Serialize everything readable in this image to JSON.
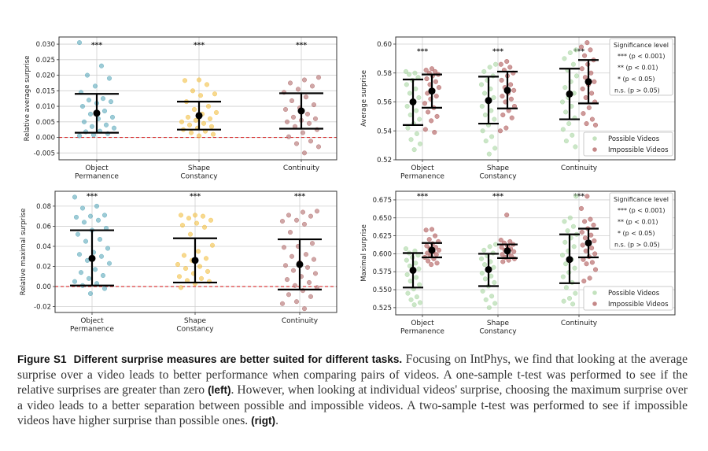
{
  "caption": {
    "label": "Figure S1",
    "title": "Different surprise measures are better suited for different tasks.",
    "text1": "Focusing on IntPhys, we find that looking at the average surprise over a video leads to better performance when comparing pairs of videos. A one-sample t-test was performed to see if the relative surprises are greater than zero",
    "left_ref": "(left)",
    "text2": ". However, when looking at individual videos' surprise, choosing the maximum surprise over a video leads to a better separation between possible and impossible videos. A two-sample t-test was performed to see if impossible videos have higher surprise than possible ones.",
    "right_ref": "(rigt)",
    "end": "."
  },
  "colors": {
    "object": "#5ba9ba",
    "shape": "#f2bf45",
    "continuity": "#b06c6c",
    "possible": "#a9d6a2",
    "impossible": "#ad5656",
    "mean": "#000000",
    "zero_line": "#d62728"
  },
  "chart_data": [
    {
      "type": "scatter",
      "ylabel": "Relative average surprise",
      "ylim": [
        -0.0072,
        0.0323
      ],
      "yticks": [
        -0.005,
        0.0,
        0.005,
        0.01,
        0.015,
        0.02,
        0.025,
        0.03
      ],
      "ytick_labels": [
        "-0.005",
        "0.000",
        "0.005",
        "0.010",
        "0.015",
        "0.020",
        "0.025",
        "0.030"
      ],
      "categories": [
        "Object|Permanence",
        "Shape|Constancy",
        "Continuity"
      ],
      "significance": [
        "***",
        "***",
        "***"
      ],
      "zero_line": true,
      "groups": [
        {
          "cat": 0,
          "color": "object",
          "mean": 0.0078,
          "ci": [
            0.0015,
            0.014
          ],
          "points": [
            0.0305,
            0.023,
            0.02,
            0.019,
            0.0165,
            0.0145,
            0.0125,
            0.012,
            0.0115,
            0.011,
            0.01,
            0.0085,
            0.0075,
            0.0065,
            0.006,
            0.005,
            0.004,
            0.0035,
            0.003,
            0.002,
            0.0018,
            0.0012,
            0.0008,
            0.0005
          ]
        },
        {
          "cat": 1,
          "color": "shape",
          "mean": 0.007,
          "ci": [
            0.0025,
            0.0115
          ],
          "points": [
            0.0185,
            0.0183,
            0.017,
            0.015,
            0.014,
            0.0135,
            0.0115,
            0.01,
            0.009,
            0.008,
            0.0075,
            0.0065,
            0.006,
            0.0055,
            0.005,
            0.0045,
            0.004,
            0.0035,
            0.003,
            0.0025,
            0.002,
            0.0015,
            0.001,
            0.0005
          ]
        },
        {
          "cat": 2,
          "color": "continuity",
          "mean": 0.0085,
          "ci": [
            0.0028,
            0.0142
          ],
          "points": [
            0.0193,
            0.0185,
            0.0175,
            0.0165,
            0.0155,
            0.0145,
            0.013,
            0.0118,
            0.0105,
            0.0095,
            0.009,
            0.0075,
            0.0065,
            0.006,
            0.0055,
            0.005,
            0.0045,
            0.0035,
            0.0025,
            0.0015,
            0.0002,
            -0.0012,
            -0.002,
            -0.003,
            -0.005
          ]
        }
      ]
    },
    {
      "type": "scatter",
      "ylabel": "Average surprise",
      "ylim": [
        0.52,
        0.6049
      ],
      "yticks": [
        0.52,
        0.54,
        0.56,
        0.58,
        0.6
      ],
      "ytick_labels": [
        "0.52",
        "0.54",
        "0.56",
        "0.58",
        "0.60"
      ],
      "categories": [
        "Object|Permanence",
        "Shape|Constancy",
        "Continuity"
      ],
      "significance": [
        "***",
        "***",
        "***"
      ],
      "zero_line": false,
      "legend_sig": {
        "title": "Significance level",
        "items": [
          "*** (p < 0.001)",
          "** (p < 0.01)",
          "* (p < 0.05)",
          "n.s. (p > 0.05)"
        ]
      },
      "legend": [
        {
          "label": "Possible Videos",
          "color": "possible"
        },
        {
          "label": "Impossible Videos",
          "color": "impossible"
        }
      ],
      "groups": [
        {
          "cat": 0,
          "side": -1,
          "color": "possible",
          "mean": 0.56,
          "ci": [
            0.544,
            0.5755
          ],
          "points": [
            0.581,
            0.58,
            0.579,
            0.577,
            0.575,
            0.572,
            0.569,
            0.566,
            0.563,
            0.56,
            0.557,
            0.554,
            0.551,
            0.548,
            0.545,
            0.542,
            0.538,
            0.534,
            0.531,
            0.527
          ]
        },
        {
          "cat": 0,
          "side": 1,
          "color": "impossible",
          "mean": 0.5675,
          "ci": [
            0.556,
            0.579
          ],
          "points": [
            0.583,
            0.582,
            0.581,
            0.58,
            0.579,
            0.578,
            0.576,
            0.574,
            0.572,
            0.57,
            0.568,
            0.566,
            0.564,
            0.562,
            0.559,
            0.556,
            0.553,
            0.55,
            0.547,
            0.541,
            0.539
          ]
        },
        {
          "cat": 1,
          "side": -1,
          "color": "possible",
          "mean": 0.561,
          "ci": [
            0.545,
            0.5775
          ],
          "points": [
            0.586,
            0.584,
            0.581,
            0.578,
            0.575,
            0.572,
            0.569,
            0.566,
            0.563,
            0.56,
            0.557,
            0.554,
            0.551,
            0.548,
            0.544,
            0.54,
            0.536,
            0.533,
            0.528,
            0.524
          ]
        },
        {
          "cat": 1,
          "side": 1,
          "color": "impossible",
          "mean": 0.568,
          "ci": [
            0.5555,
            0.581
          ],
          "points": [
            0.588,
            0.586,
            0.584,
            0.582,
            0.58,
            0.578,
            0.575,
            0.572,
            0.57,
            0.568,
            0.566,
            0.564,
            0.562,
            0.56,
            0.557,
            0.554,
            0.551,
            0.549,
            0.542,
            0.54
          ]
        },
        {
          "cat": 2,
          "side": -1,
          "color": "possible",
          "mean": 0.5655,
          "ci": [
            0.548,
            0.583
          ],
          "points": [
            0.596,
            0.594,
            0.59,
            0.586,
            0.582,
            0.578,
            0.574,
            0.57,
            0.566,
            0.563,
            0.56,
            0.557,
            0.553,
            0.549,
            0.545,
            0.541,
            0.537,
            0.533,
            0.529
          ]
        },
        {
          "cat": 2,
          "side": 1,
          "color": "impossible",
          "mean": 0.574,
          "ci": [
            0.559,
            0.589
          ],
          "points": [
            0.601,
            0.598,
            0.596,
            0.592,
            0.589,
            0.586,
            0.583,
            0.58,
            0.577,
            0.574,
            0.572,
            0.569,
            0.566,
            0.563,
            0.56,
            0.556,
            0.552,
            0.548,
            0.545,
            0.544
          ]
        }
      ]
    },
    {
      "type": "scatter",
      "ylabel": "Relative maximal surprise",
      "ylim": [
        -0.0258,
        0.0948
      ],
      "yticks": [
        -0.02,
        0.0,
        0.02,
        0.04,
        0.06,
        0.08
      ],
      "ytick_labels": [
        "-0.02",
        "0.00",
        "0.02",
        "0.04",
        "0.06",
        "0.08"
      ],
      "categories": [
        "Object|Permanence",
        "Shape|Constancy",
        "Continuity"
      ],
      "significance": [
        "***",
        "***",
        "***"
      ],
      "zero_line": true,
      "groups": [
        {
          "cat": 0,
          "color": "object",
          "mean": 0.028,
          "ci": [
            0.001,
            0.056
          ],
          "points": [
            0.089,
            0.08,
            0.078,
            0.071,
            0.07,
            0.069,
            0.066,
            0.064,
            0.058,
            0.056,
            0.052,
            0.047,
            0.045,
            0.038,
            0.034,
            0.032,
            0.03,
            0.026,
            0.023,
            0.017,
            0.014,
            0.011,
            0.008,
            0.005,
            0.003,
            0.001,
            -0.002,
            -0.007
          ]
        },
        {
          "cat": 1,
          "color": "shape",
          "mean": 0.026,
          "ci": [
            0.004,
            0.048
          ],
          "points": [
            0.071,
            0.071,
            0.07,
            0.068,
            0.066,
            0.063,
            0.061,
            0.059,
            0.052,
            0.041,
            0.035,
            0.031,
            0.028,
            0.026,
            0.022,
            0.02,
            0.018,
            0.015,
            0.013,
            0.01,
            0.008,
            0.006,
            0.005,
            0.003,
            -0.001
          ]
        },
        {
          "cat": 2,
          "color": "continuity",
          "mean": 0.022,
          "ci": [
            -0.003,
            0.047
          ],
          "points": [
            0.075,
            0.074,
            0.071,
            0.07,
            0.066,
            0.065,
            0.062,
            0.054,
            0.043,
            0.04,
            0.039,
            0.032,
            0.03,
            0.027,
            0.024,
            0.021,
            0.019,
            0.016,
            0.013,
            0.01,
            0.007,
            0.004,
            0.001,
            -0.001,
            -0.004,
            -0.008,
            -0.01,
            -0.015,
            -0.017,
            -0.022
          ]
        }
      ]
    },
    {
      "type": "scatter",
      "ylabel": "Maximal surprise",
      "ylim": [
        0.515,
        0.687
      ],
      "yticks": [
        0.525,
        0.55,
        0.575,
        0.6,
        0.625,
        0.65,
        0.675
      ],
      "ytick_labels": [
        "0.525",
        "0.550",
        "0.575",
        "0.600",
        "0.625",
        "0.650",
        "0.675"
      ],
      "categories": [
        "Object|Permanence",
        "Shape|Constancy",
        "Continuity"
      ],
      "significance": [
        "***",
        "***",
        "***"
      ],
      "zero_line": false,
      "legend_sig": {
        "title": "Significance level",
        "items": [
          "*** (p < 0.001)",
          "** (p < 0.01)",
          "* (p < 0.05)",
          "n.s. (p > 0.05)"
        ]
      },
      "legend": [
        {
          "label": "Possible Videos",
          "color": "possible"
        },
        {
          "label": "Impossible Videos",
          "color": "impossible"
        }
      ],
      "groups": [
        {
          "cat": 0,
          "side": -1,
          "color": "possible",
          "mean": 0.577,
          "ci": [
            0.553,
            0.601
          ],
          "points": [
            0.607,
            0.604,
            0.601,
            0.598,
            0.595,
            0.591,
            0.587,
            0.583,
            0.579,
            0.575,
            0.571,
            0.567,
            0.562,
            0.557,
            0.551,
            0.545,
            0.54,
            0.536,
            0.532,
            0.529
          ]
        },
        {
          "cat": 0,
          "side": 1,
          "color": "impossible",
          "mean": 0.605,
          "ci": [
            0.595,
            0.615
          ],
          "points": [
            0.634,
            0.633,
            0.625,
            0.62,
            0.617,
            0.614,
            0.611,
            0.609,
            0.607,
            0.605,
            0.603,
            0.601,
            0.599,
            0.597,
            0.595,
            0.593,
            0.59,
            0.587,
            0.585
          ]
        },
        {
          "cat": 1,
          "side": -1,
          "color": "possible",
          "mean": 0.578,
          "ci": [
            0.555,
            0.6
          ],
          "points": [
            0.613,
            0.61,
            0.605,
            0.601,
            0.597,
            0.593,
            0.589,
            0.585,
            0.581,
            0.577,
            0.573,
            0.569,
            0.565,
            0.56,
            0.555,
            0.548,
            0.541,
            0.536,
            0.531,
            0.525
          ]
        },
        {
          "cat": 1,
          "side": 1,
          "color": "impossible",
          "mean": 0.604,
          "ci": [
            0.594,
            0.613
          ],
          "points": [
            0.654,
            0.619,
            0.617,
            0.615,
            0.613,
            0.611,
            0.609,
            0.607,
            0.605,
            0.603,
            0.601,
            0.599,
            0.597,
            0.595,
            0.593,
            0.591,
            0.589
          ]
        },
        {
          "cat": 2,
          "side": -1,
          "color": "possible",
          "mean": 0.592,
          "ci": [
            0.559,
            0.627
          ],
          "points": [
            0.68,
            0.65,
            0.645,
            0.638,
            0.632,
            0.627,
            0.622,
            0.616,
            0.61,
            0.604,
            0.598,
            0.592,
            0.586,
            0.58,
            0.574,
            0.568,
            0.56,
            0.553,
            0.545,
            0.538,
            0.534,
            0.53
          ]
        },
        {
          "cat": 2,
          "side": 1,
          "color": "impossible",
          "mean": 0.615,
          "ci": [
            0.595,
            0.635
          ],
          "points": [
            0.68,
            0.663,
            0.648,
            0.645,
            0.64,
            0.635,
            0.63,
            0.626,
            0.622,
            0.618,
            0.615,
            0.612,
            0.608,
            0.604,
            0.6,
            0.596,
            0.592,
            0.588,
            0.586,
            0.578,
            0.566,
            0.562
          ]
        }
      ]
    }
  ]
}
